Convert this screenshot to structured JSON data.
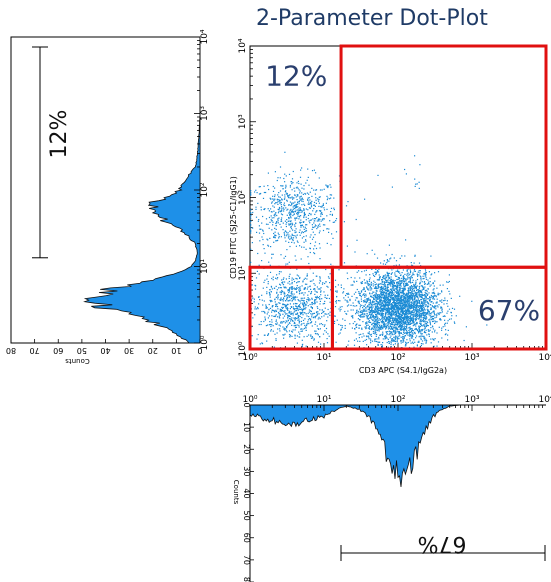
{
  "title": "2-Parameter Dot-Plot",
  "colors": {
    "dot": "#1a8ad4",
    "hist_fill": "#1e90e8",
    "hist_edge": "#111111",
    "gate": "#e01010",
    "title": "#1f3b66",
    "quadrant_text": "#2a3f6e"
  },
  "chart_data": [
    {
      "type": "scatter",
      "title": "2-Parameter Dot-Plot",
      "xlabel": "CD3 APC (S4.1/IgG2a)",
      "ylabel": "CD19 FITC (SJ25-C1/IgG1)",
      "xscale": "log",
      "yscale": "log",
      "xlim": [
        1,
        10000
      ],
      "ylim": [
        1,
        10000
      ],
      "xticks": [
        "10⁰",
        "10¹",
        "10²",
        "10³",
        "10⁴"
      ],
      "yticks": [
        "10⁰",
        "10¹",
        "10²",
        "10³",
        "10⁴"
      ],
      "clusters": [
        {
          "population": "CD19+ CD3-",
          "x_center": 4,
          "y_center": 60,
          "x_spread_decades": 0.3,
          "y_spread_decades": 0.25,
          "n": 700
        },
        {
          "population": "CD19- CD3-",
          "x_center": 4,
          "y_center": 3.5,
          "x_spread_decades": 0.3,
          "y_spread_decades": 0.25,
          "n": 900
        },
        {
          "population": "CD19- CD3+",
          "x_center": 100,
          "y_center": 3.5,
          "x_spread_decades": 0.28,
          "y_spread_decades": 0.25,
          "n": 3200
        },
        {
          "population": "CD19+ CD3+",
          "x_center": 150,
          "y_center": 150,
          "x_spread_decades": 0.15,
          "y_spread_decades": 0.15,
          "n": 12
        }
      ],
      "gates": [
        {
          "name": "upper-right",
          "x_range": [
            17,
            10000
          ],
          "y_range": [
            12,
            10000
          ]
        },
        {
          "name": "lower-left",
          "x_range": [
            1,
            13
          ],
          "y_range": [
            1,
            12
          ]
        },
        {
          "name": "lower-right",
          "x_range": [
            13,
            10000
          ],
          "y_range": [
            1,
            12
          ]
        }
      ],
      "annotations": [
        {
          "text": "12%",
          "quadrant": "upper-left"
        },
        {
          "text": "67%",
          "quadrant": "lower-right"
        }
      ]
    },
    {
      "type": "area",
      "orientation": "vertical",
      "axis": "CD19 FITC",
      "xlabel": "Counts",
      "ylabel": "",
      "scale": "log",
      "ylim": [
        1,
        10000
      ],
      "xlim": [
        0,
        80
      ],
      "count_ticks": [
        0,
        10,
        20,
        30,
        40,
        50,
        60,
        70,
        80
      ],
      "y": [
        1,
        1.5,
        2,
        2.5,
        3,
        3.5,
        4,
        5,
        6,
        7,
        8,
        10,
        12,
        15,
        20,
        30,
        40,
        50,
        60,
        70,
        80,
        100,
        150,
        200,
        300,
        500,
        1000,
        10000
      ],
      "counts": [
        5,
        12,
        22,
        33,
        42,
        46,
        45,
        38,
        28,
        18,
        10,
        4,
        2,
        1,
        2,
        8,
        15,
        19,
        20,
        19,
        15,
        9,
        5,
        2,
        1,
        0.5,
        0,
        0
      ],
      "marker": {
        "text": "12%",
        "range": [
          13,
          10000
        ]
      }
    },
    {
      "type": "area",
      "orientation": "horizontal",
      "axis": "CD3 APC",
      "xlabel": "",
      "ylabel": "Counts",
      "scale": "log",
      "xlim": [
        1,
        10000
      ],
      "ylim": [
        0,
        80
      ],
      "count_ticks": [
        0,
        10,
        20,
        30,
        40,
        50,
        60,
        70,
        80
      ],
      "x": [
        1,
        1.5,
        2,
        3,
        4,
        5,
        6,
        8,
        10,
        13,
        17,
        20,
        30,
        40,
        50,
        60,
        70,
        80,
        100,
        120,
        150,
        200,
        250,
        300,
        400,
        500,
        700,
        1000,
        10000
      ],
      "counts": [
        4,
        6,
        7,
        8,
        9,
        8,
        7,
        6,
        5,
        3,
        1,
        0.5,
        2,
        5,
        10,
        16,
        22,
        26,
        30,
        32,
        28,
        18,
        10,
        5,
        2,
        0.5,
        0,
        0,
        0
      ],
      "marker": {
        "text": "67%",
        "range": [
          20,
          10000
        ]
      }
    }
  ]
}
